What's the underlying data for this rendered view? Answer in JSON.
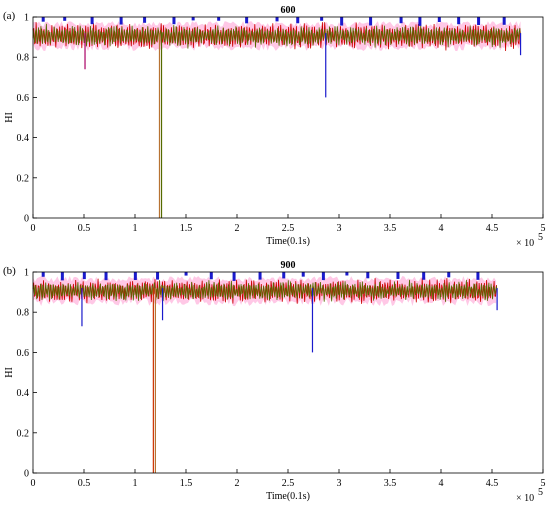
{
  "chart_data": [
    {
      "type": "line",
      "panel_label": "(a)",
      "title": "600",
      "xlabel": "Time(0.1s)",
      "ylabel": "HI",
      "x_exponent": "× 10",
      "x_exponent_power": "5",
      "xlim": [
        0,
        5
      ],
      "ylim": [
        0,
        1
      ],
      "xticks": [
        "0",
        "0.5",
        "1",
        "1.5",
        "2",
        "2.5",
        "3",
        "3.5",
        "4",
        "4.5",
        "5"
      ],
      "yticks": [
        "0",
        "0.2",
        "0.4",
        "0.6",
        "0.8",
        "1"
      ],
      "grid": false,
      "data_end_x": 4.78,
      "band": {
        "low": 0.83,
        "high": 0.98
      },
      "series": [
        {
          "color": "#cc0000",
          "baseline": 0.905,
          "amplitude": 0.055
        },
        {
          "color": "#556b00",
          "baseline": 0.905,
          "amplitude": 0.045
        }
      ],
      "dropouts": [
        {
          "x": 1.24,
          "y": 0.0,
          "color": "#b87333"
        },
        {
          "x": 1.26,
          "y": 0.0,
          "color": "#556b00"
        },
        {
          "x": 0.51,
          "y": 0.74,
          "color": "#aa0066"
        },
        {
          "x": 2.87,
          "y": 0.6,
          "color": "#1a1acc"
        },
        {
          "x": 4.78,
          "y": 0.81,
          "color": "#1a1acc"
        }
      ],
      "spikes_color": "#1a1acc"
    },
    {
      "type": "line",
      "panel_label": "(b)",
      "title": "900",
      "xlabel": "Time(0.1s)",
      "ylabel": "HI",
      "x_exponent": "× 10",
      "x_exponent_power": "5",
      "xlim": [
        0,
        5
      ],
      "ylim": [
        0,
        1
      ],
      "xticks": [
        "0",
        "0.5",
        "1",
        "1.5",
        "2",
        "2.5",
        "3",
        "3.5",
        "4",
        "4.5",
        "5"
      ],
      "yticks": [
        "0",
        "0.2",
        "0.4",
        "0.6",
        "0.8",
        "1"
      ],
      "grid": false,
      "data_end_x": 4.55,
      "band": {
        "low": 0.83,
        "high": 0.98
      },
      "series": [
        {
          "color": "#cc0000",
          "baseline": 0.905,
          "amplitude": 0.05
        },
        {
          "color": "#556b00",
          "baseline": 0.905,
          "amplitude": 0.04
        }
      ],
      "dropouts": [
        {
          "x": 1.18,
          "y": 0.0,
          "color": "#cc3300"
        },
        {
          "x": 1.2,
          "y": 0.0,
          "color": "#b87333"
        },
        {
          "x": 0.48,
          "y": 0.73,
          "color": "#1a1acc"
        },
        {
          "x": 1.27,
          "y": 0.76,
          "color": "#1a1acc"
        },
        {
          "x": 2.74,
          "y": 0.6,
          "color": "#1a1acc"
        },
        {
          "x": 4.55,
          "y": 0.81,
          "color": "#1a1acc"
        }
      ],
      "spikes_color": "#1a1acc"
    }
  ]
}
